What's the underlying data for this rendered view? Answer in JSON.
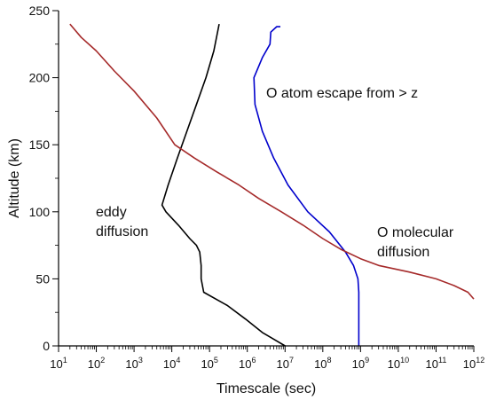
{
  "chart_data": {
    "type": "line",
    "title": "",
    "xlabel": "Timescale (sec)",
    "ylabel": "Altitude (km)",
    "x_scale": "log",
    "xlim": [
      10,
      1000000000000
    ],
    "ylim": [
      0,
      250
    ],
    "x_tick_exponents": [
      1,
      2,
      3,
      4,
      5,
      6,
      7,
      8,
      9,
      10,
      11,
      12
    ],
    "x_tick_base": "10",
    "y_ticks": [
      0,
      50,
      100,
      150,
      200,
      250
    ],
    "grid": false,
    "legend": "none (inline annotations)",
    "series": [
      {
        "key": "eddy",
        "color": "#000000",
        "points": [
          [
            10000000,
            0
          ],
          [
            5000000,
            5
          ],
          [
            2500000,
            10
          ],
          [
            900000,
            20
          ],
          [
            300000,
            30
          ],
          [
            70000,
            40
          ],
          [
            60000,
            50
          ],
          [
            60000,
            60
          ],
          [
            55000,
            70
          ],
          [
            45000,
            75
          ],
          [
            30000,
            80
          ],
          [
            15000,
            90
          ],
          [
            7000,
            100
          ],
          [
            5500,
            105
          ],
          [
            8000,
            120
          ],
          [
            14000,
            140
          ],
          [
            25000,
            160
          ],
          [
            45000,
            180
          ],
          [
            80000,
            200
          ],
          [
            130000,
            220
          ],
          [
            180000,
            240
          ]
        ]
      },
      {
        "key": "escape",
        "color": "#0000cc",
        "points": [
          [
            900000000,
            0
          ],
          [
            900000000,
            20
          ],
          [
            900000000,
            40
          ],
          [
            850000000,
            50
          ],
          [
            650000000,
            60
          ],
          [
            400000000,
            70
          ],
          [
            150000000,
            85
          ],
          [
            40000000,
            100
          ],
          [
            12000000,
            120
          ],
          [
            5000000,
            140
          ],
          [
            2500000,
            160
          ],
          [
            1600000,
            180
          ],
          [
            1500000,
            200
          ],
          [
            2500000,
            215
          ],
          [
            4000000,
            225
          ],
          [
            4200000,
            234
          ],
          [
            6000000,
            238
          ],
          [
            7500000,
            238
          ]
        ]
      },
      {
        "key": "molecular",
        "color": "#a52a2a",
        "points": [
          [
            20,
            240
          ],
          [
            40,
            230
          ],
          [
            100,
            220
          ],
          [
            300,
            205
          ],
          [
            1000,
            190
          ],
          [
            4000,
            170
          ],
          [
            12000,
            150
          ],
          [
            40000,
            140
          ],
          [
            150000,
            130
          ],
          [
            600000,
            120
          ],
          [
            2000000,
            110
          ],
          [
            8000000,
            100
          ],
          [
            30000000,
            90
          ],
          [
            100000000,
            80
          ],
          [
            300000000,
            72
          ],
          [
            1000000000,
            65
          ],
          [
            3000000000,
            60
          ],
          [
            20000000000,
            55
          ],
          [
            100000000000,
            50
          ],
          [
            300000000000,
            45
          ],
          [
            700000000000,
            40
          ],
          [
            1000000000000,
            35
          ]
        ]
      }
    ],
    "annotations": {
      "escape": "O atom escape from > z",
      "eddy_line1": "eddy",
      "eddy_line2": "diffusion",
      "molecular_line1": "O molecular",
      "molecular_line2": "diffusion"
    }
  }
}
